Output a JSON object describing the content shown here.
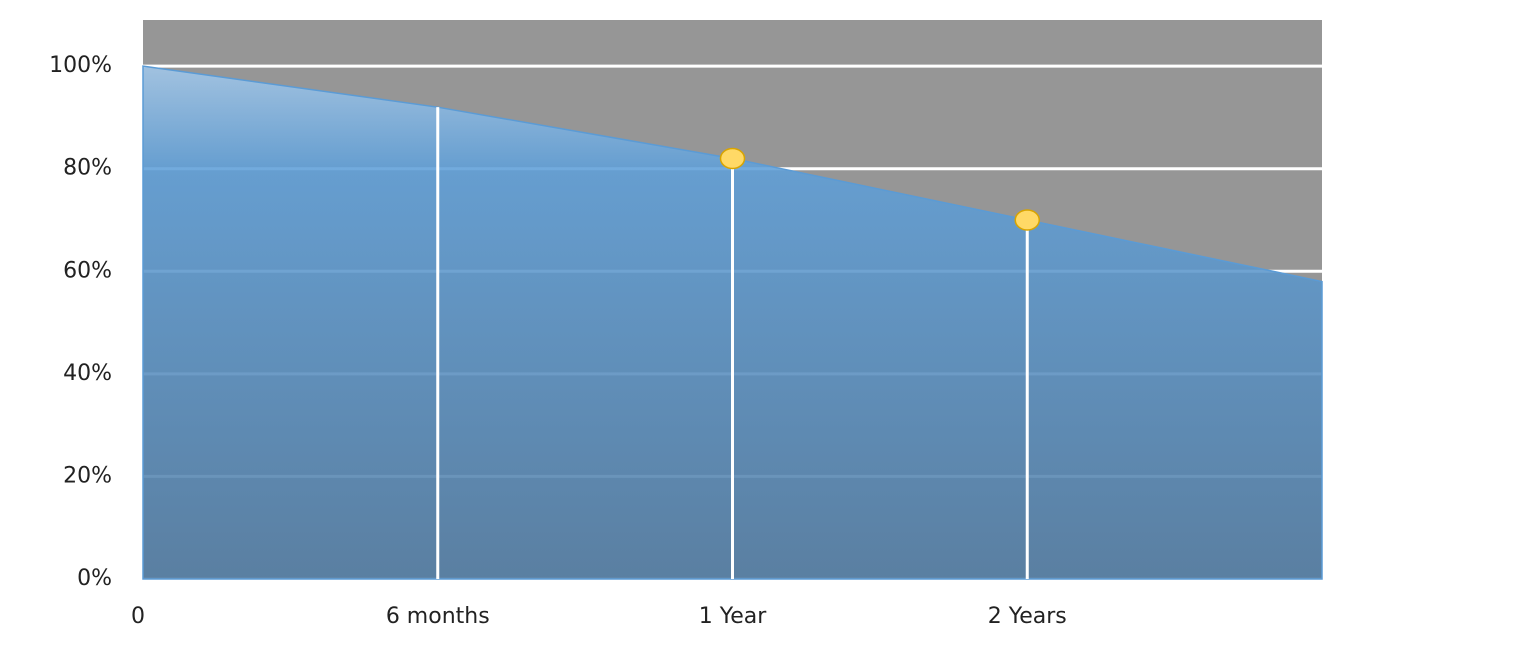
{
  "chart_data": {
    "type": "area",
    "categories": [
      "0",
      "6 months",
      "1 Year",
      "2 Years",
      null
    ],
    "values": [
      100,
      92,
      82,
      70,
      58
    ],
    "color": "#5b9bd5",
    "background_color": "#969696",
    "markers": [
      false,
      false,
      true,
      true,
      false
    ],
    "marker_color": "#ffd966",
    "drop_lines": true,
    "ylim": [
      0,
      109
    ],
    "yticks": [
      {
        "value": 0,
        "label": "0%"
      },
      {
        "value": 20,
        "label": "20%"
      },
      {
        "value": 40,
        "label": "40%"
      },
      {
        "value": 60,
        "label": "60%"
      },
      {
        "value": 80,
        "label": "80%"
      },
      {
        "value": 100,
        "label": "100%"
      }
    ],
    "grid": true
  }
}
